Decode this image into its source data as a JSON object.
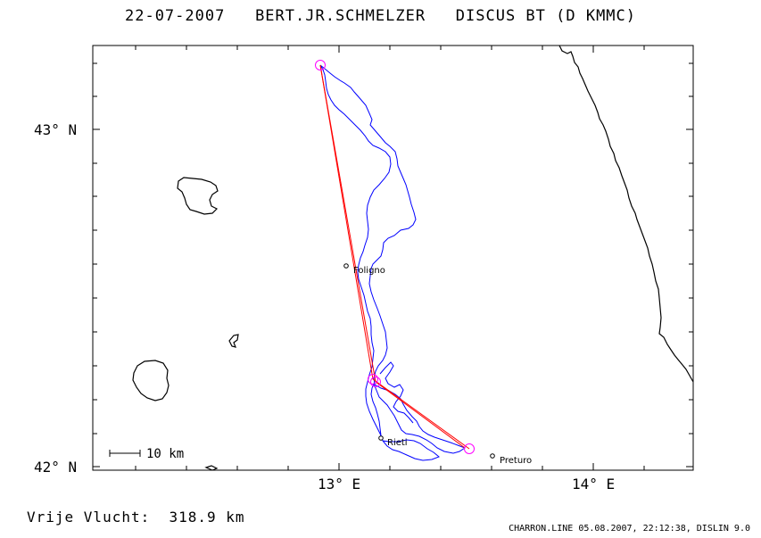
{
  "title": {
    "date": "22-07-2007",
    "pilot": "BERT.JR.SCHMELZER",
    "glider": "DISCUS BT (D KMMC)"
  },
  "axes": {
    "lat_labels": [
      "43° N",
      "42° N"
    ],
    "lon_labels": [
      "13° E",
      "14° E"
    ]
  },
  "places": [
    {
      "name": "Foligno",
      "lon": 13.02,
      "lat": 42.6
    },
    {
      "name": "Rieti",
      "lon": 13.16,
      "lat": 42.09
    },
    {
      "name": "Preturo",
      "lon": 13.6,
      "lat": 42.04
    }
  ],
  "turnpoints": [
    {
      "lon": 12.91,
      "lat": 43.19
    },
    {
      "lon": 13.13,
      "lat": 42.26
    },
    {
      "lon": 13.51,
      "lat": 42.06
    }
  ],
  "scale": {
    "label": "10 km"
  },
  "footer": {
    "distance": "Vrije Vlucht:  318.9 km",
    "program": "CHARRON.LINE 05.08.2007, 22:12:38, DISLIN 9.0"
  },
  "colors": {
    "track": "#0000ff",
    "task": "#ff0000",
    "turnpoint": "#ff00ff",
    "coast": "#000000"
  }
}
